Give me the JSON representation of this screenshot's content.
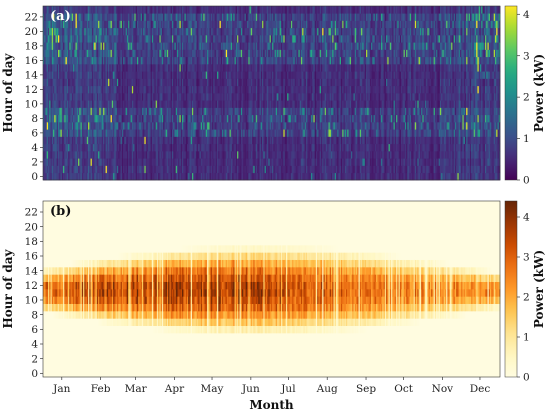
{
  "chart_data": [
    {
      "type": "heatmap",
      "panel_label": "(a)",
      "ylabel": "Hour of day",
      "xlabel": "",
      "y_ticks": [
        0,
        2,
        4,
        6,
        8,
        10,
        12,
        14,
        16,
        18,
        20,
        22
      ],
      "x_ticks": [
        "Jan",
        "Feb",
        "Mar",
        "Apr",
        "May",
        "Jun",
        "Jul",
        "Aug",
        "Sep",
        "Oct",
        "Nov",
        "Dec"
      ],
      "colorbar": {
        "label": "Power (kW)",
        "ticks": [
          0,
          1,
          2,
          3,
          4
        ],
        "range": [
          0,
          4.2
        ],
        "colormap": "viridis"
      },
      "description_values": {
        "baseline_kw": 0.5,
        "typical_range_kw": [
          0.1,
          1.5
        ],
        "peaks_kw": 4.0,
        "peak_hours": [
          6,
          7,
          8,
          17,
          18,
          19,
          20,
          21,
          22
        ],
        "higher_activity_months": [
          "Jan",
          "Feb",
          "Dec"
        ]
      }
    },
    {
      "type": "heatmap",
      "panel_label": "(b)",
      "ylabel": "Hour of day",
      "xlabel": "Month",
      "y_ticks": [
        0,
        2,
        4,
        6,
        8,
        10,
        12,
        14,
        16,
        18,
        20,
        22
      ],
      "x_ticks": [
        "Jan",
        "Feb",
        "Mar",
        "Apr",
        "May",
        "Jun",
        "Jul",
        "Aug",
        "Sep",
        "Oct",
        "Nov",
        "Dec"
      ],
      "colorbar": {
        "label": "Power (kW)",
        "ticks": [
          0,
          1,
          2,
          3,
          4
        ],
        "range": [
          0,
          4.4
        ],
        "colormap": "YlOrBr"
      },
      "description_values": {
        "solar_window_winter_hours": [
          9,
          14
        ],
        "solar_window_summer_hours": [
          6,
          18
        ],
        "peak_kw": 4.2,
        "peak_hours": [
          10,
          13
        ]
      }
    }
  ]
}
